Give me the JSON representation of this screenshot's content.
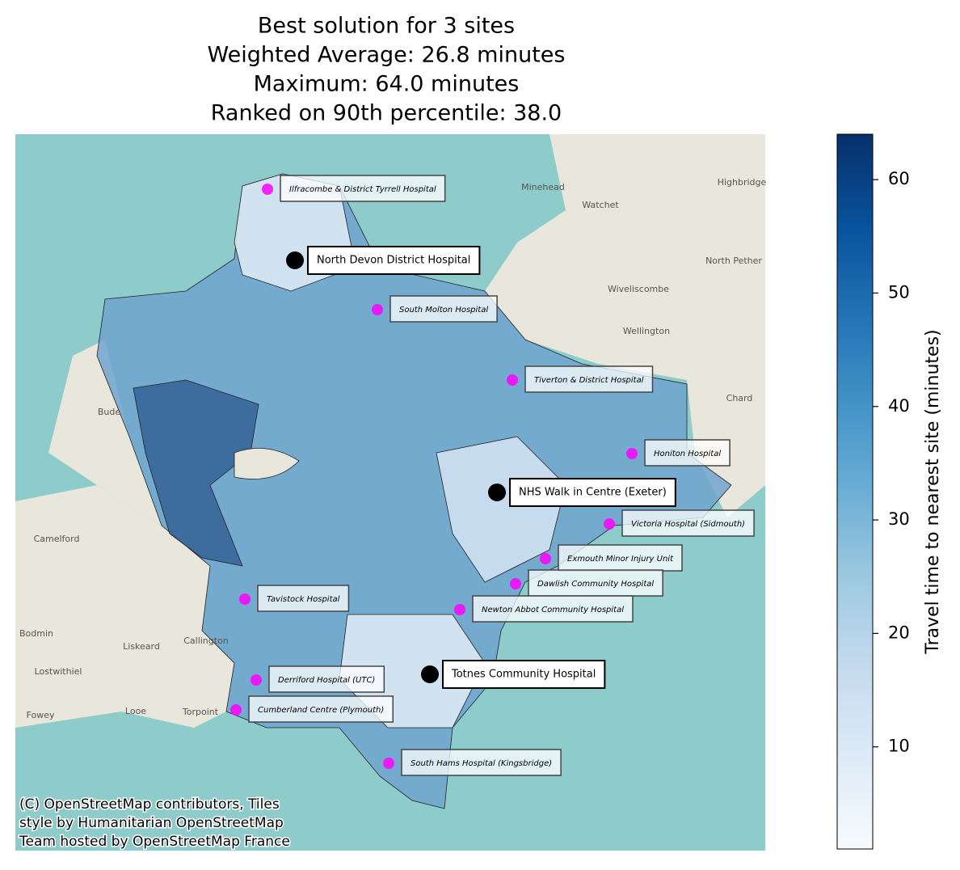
{
  "chart_data": {
    "type": "choropleth",
    "title": [
      "Best solution for 3 sites",
      "Weighted Average: 26.8 minutes",
      "Maximum: 64.0 minutes",
      "Ranked on 90th percentile: 38.0"
    ],
    "selected_sites": [
      "North Devon District Hospital",
      "NHS Walk in Centre (Exeter)",
      "Totnes Community Hospital"
    ],
    "selected_color": "#000000",
    "other_sites": [
      "Ilfracombe & District Tyrrell Hospital",
      "South Molton Hospital",
      "Tiverton & District Hospital",
      "Honiton Hospital",
      "Victoria Hospital (Sidmouth)",
      "Exmouth Minor Injury Unit",
      "Dawlish Community Hospital",
      "Newton Abbot Community Hospital",
      "Tavistock Hospital",
      "Derriford Hospital (UTC)",
      "Cumberland Centre (Plymouth)",
      "South Hams Hospital (Kingsbridge)"
    ],
    "other_color": "#ff00ff",
    "colorbar": {
      "label": "Travel time to nearest site (minutes)",
      "lim": [
        1,
        64
      ],
      "ticks": [
        10,
        20,
        30,
        40,
        50,
        60
      ],
      "cmap": "Blues"
    },
    "basemap_labels": [
      "Minehead",
      "Watchet",
      "Highbridge",
      "North Pether",
      "Wiveliscombe",
      "Wellington",
      "Chard",
      "Bude",
      "Camelford",
      "Bodmin",
      "Liskeard",
      "Lostwithiel",
      "Fowey",
      "Looe",
      "Torpoint",
      "Callington"
    ],
    "attribution": [
      "(C) OpenStreetMap contributors, Tiles",
      "style by Humanitarian OpenStreetMap",
      "Team hosted by OpenStreetMap France"
    ]
  }
}
